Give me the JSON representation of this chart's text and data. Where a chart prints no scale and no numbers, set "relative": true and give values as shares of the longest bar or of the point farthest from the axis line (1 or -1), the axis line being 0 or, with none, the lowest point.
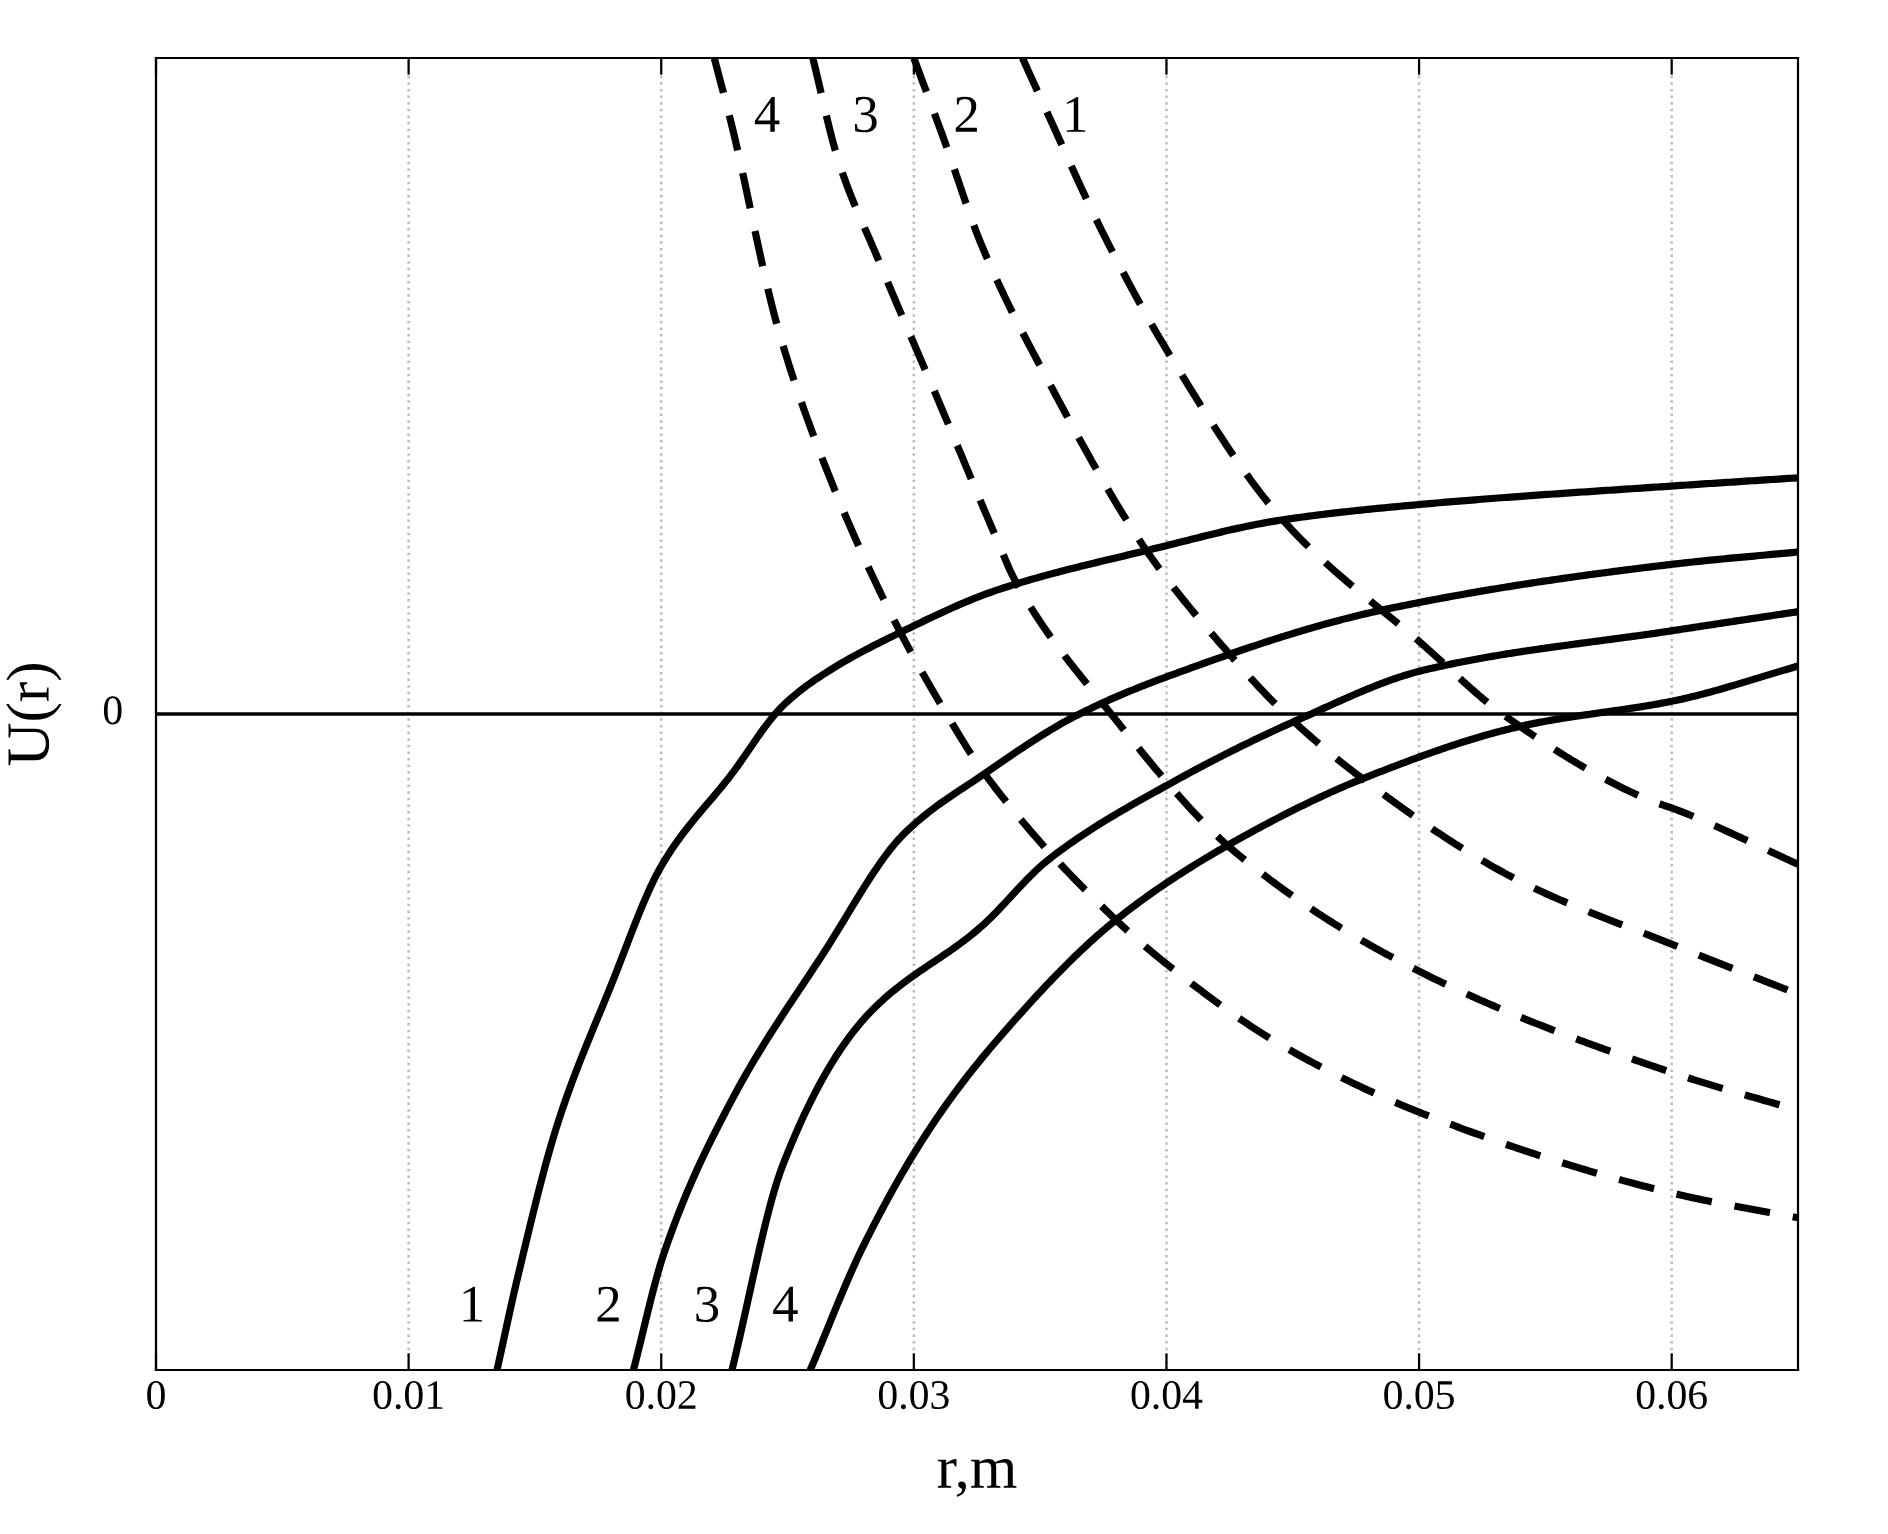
{
  "chart_data": {
    "type": "line",
    "xlabel": "r,m",
    "ylabel": "U(r)",
    "relative": true,
    "xlim": [
      0,
      0.065
    ],
    "xticks": [
      0,
      0.01,
      0.02,
      0.03,
      0.04,
      0.05,
      0.06
    ],
    "grid": "x",
    "marker": "none",
    "series": [
      {
        "color": "#000000",
        "line_style": "solid",
        "x": [
          0.0135,
          0.01429,
          0.01587,
          0.018,
          0.02,
          0.0228,
          0.0248,
          0.0264,
          0.0295,
          0.0333,
          0.0393,
          0.0446,
          0.0502,
          0.0602,
          0.065
        ],
        "values": [
          -1,
          -0.863,
          -0.628,
          -0.415,
          -0.232,
          -0.091,
          0.012,
          0.06,
          0.125,
          0.189,
          0.25,
          0.296,
          0.32,
          0.348,
          0.36
        ]
      },
      {
        "color": "#000000",
        "line_style": "solid",
        "x": [
          0.0189,
          0.0201,
          0.0228,
          0.0264,
          0.0296,
          0.0328,
          0.0364,
          0.0401,
          0.0486,
          0.0602,
          0.065
        ],
        "values": [
          -1,
          -0.823,
          -0.588,
          -0.366,
          -0.183,
          -0.091,
          -0.003,
          0.058,
          0.159,
          0.229,
          0.247
        ]
      },
      {
        "color": "#000000",
        "line_style": "solid",
        "x": [
          0.0228,
          0.0248,
          0.028,
          0.0327,
          0.0353,
          0.0401,
          0.0452,
          0.0502,
          0.0602,
          0.065
        ],
        "values": [
          -1,
          -0.689,
          -0.466,
          -0.323,
          -0.223,
          -0.107,
          -0.009,
          0.067,
          0.128,
          0.156
        ]
      },
      {
        "color": "#000000",
        "line_style": "solid",
        "x": [
          0.0259,
          0.028,
          0.0307,
          0.0333,
          0.038,
          0.0428,
          0.048,
          0.0541,
          0.0602,
          0.065
        ],
        "values": [
          -1,
          -0.811,
          -0.628,
          -0.497,
          -0.314,
          -0.192,
          -0.095,
          -0.018,
          0.021,
          0.073
        ]
      },
      {
        "color": "#000000",
        "line_style": "dashed",
        "x": [
          0.0343,
          0.0353,
          0.0375,
          0.0401,
          0.0446,
          0.0502,
          0.0533,
          0.0591,
          0.0602,
          0.065
        ],
        "values": [
          1,
          0.915,
          0.732,
          0.549,
          0.296,
          0.104,
          0.0,
          -0.131,
          -0.146,
          -0.229
        ]
      },
      {
        "color": "#000000",
        "line_style": "dashed",
        "x": [
          0.03,
          0.0312,
          0.0327,
          0.0353,
          0.0393,
          0.0425,
          0.0444,
          0.0475,
          0.0539,
          0.0602,
          0.065
        ],
        "values": [
          1,
          0.875,
          0.713,
          0.509,
          0.244,
          0.091,
          0.012,
          -0.091,
          -0.253,
          -0.354,
          -0.427
        ]
      },
      {
        "color": "#000000",
        "line_style": "dashed",
        "x": [
          0.026,
          0.027,
          0.0286,
          0.0312,
          0.0333,
          0.034,
          0.0375,
          0.0428,
          0.0502,
          0.0602,
          0.065
        ],
        "values": [
          1,
          0.845,
          0.692,
          0.457,
          0.265,
          0.204,
          0.015,
          -0.213,
          -0.396,
          -0.549,
          -0.604
        ]
      },
      {
        "color": "#000000",
        "line_style": "dashed",
        "x": [
          0.0221,
          0.0228,
          0.0246,
          0.0264,
          0.0291,
          0.0312,
          0.0328,
          0.038,
          0.0401,
          0.0446,
          0.0502,
          0.0602,
          0.065
        ],
        "values": [
          1,
          0.896,
          0.591,
          0.387,
          0.152,
          0.006,
          -0.091,
          -0.314,
          -0.384,
          -0.506,
          -0.61,
          -0.732,
          -0.768
        ]
      }
    ],
    "ref_lines": [
      {
        "axis": "y",
        "value": 0,
        "label": "0",
        "color": "#000000",
        "line_style": "solid"
      }
    ],
    "annotations": [
      "1",
      "2",
      "3",
      "4",
      "1",
      "2",
      "3",
      "4"
    ]
  }
}
